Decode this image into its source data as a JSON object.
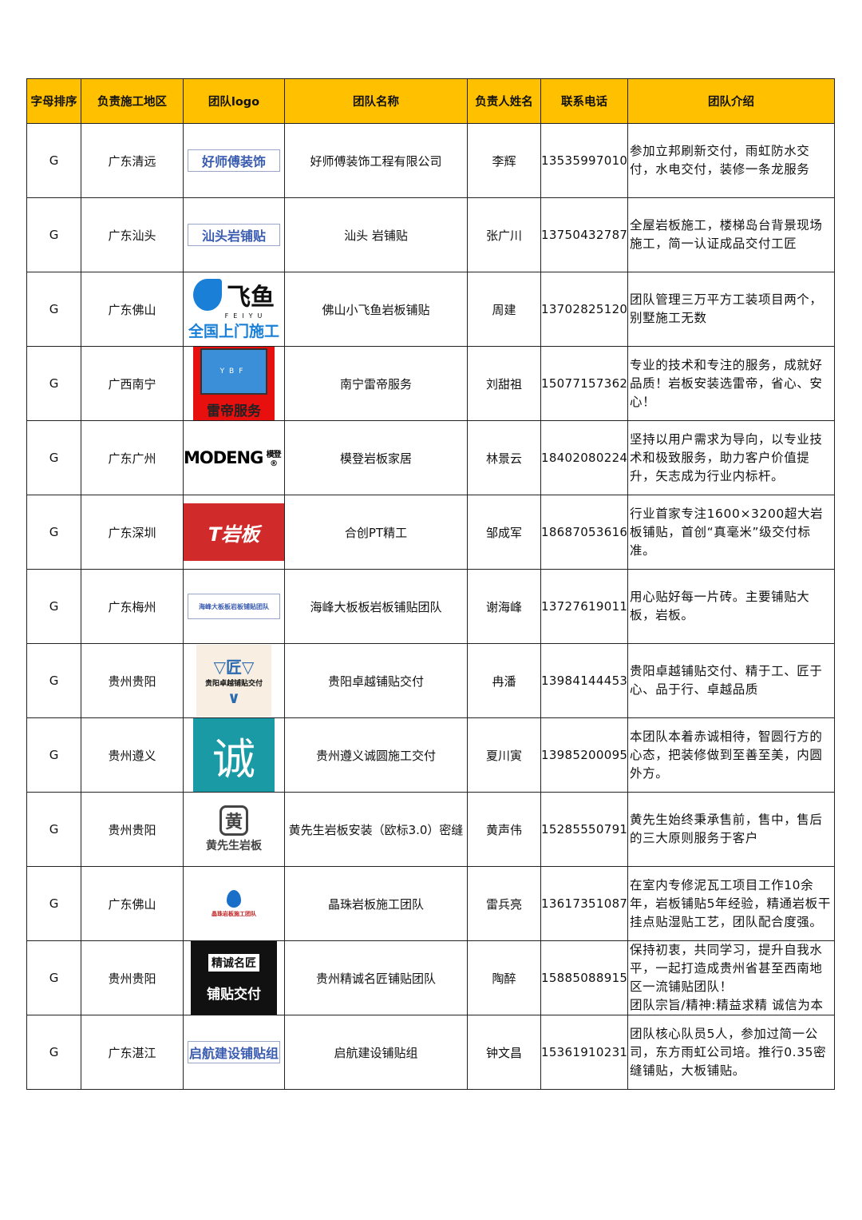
{
  "header": {
    "sort": "字母排序",
    "region": "负责施工地区",
    "logo": "团队logo",
    "team": "团队名称",
    "leader": "负责人姓名",
    "phone": "联系电话",
    "intro": "团队介绍"
  },
  "colors": {
    "header_bg": "#ffc000",
    "border": "#222222"
  },
  "rows": [
    {
      "letter": "G",
      "region": "广东清远",
      "logo_text": "好师傅装饰",
      "logo_type": "box",
      "team": "好师傅装饰工程有限公司",
      "leader": "李辉",
      "phone": "13535997010",
      "intro": "参加立邦刷新交付，雨虹防水交付，水电交付，装修一条龙服务"
    },
    {
      "letter": "G",
      "region": "广东汕头",
      "logo_text": "汕头岩铺贴",
      "logo_type": "box",
      "team": "汕头 岩铺贴",
      "leader": "张广川",
      "phone": "13750432787",
      "intro": "全屋岩板施工，楼梯岛台背景现场施工，简一认证成品交付工匠"
    },
    {
      "letter": "G",
      "region": "广东佛山",
      "logo_text": "飞鱼 FEIYU 全国上门施工",
      "logo_type": "feiyu",
      "team": "佛山小飞鱼岩板铺贴",
      "leader": "周建",
      "phone": "13702825120",
      "intro": "团队管理三万平方工装项目两个，别墅施工无数"
    },
    {
      "letter": "G",
      "region": "广西南宁",
      "logo_text": "YBF 雷帝服务",
      "logo_type": "leidi",
      "team": "南宁雷帝服务",
      "leader": "刘甜祖",
      "phone": "15077157362",
      "intro": "专业的技术和专注的服务，成就好品质！岩板安装选雷帝，省心、安心！"
    },
    {
      "letter": "G",
      "region": "广东广州",
      "logo_text": "MODENG模登®",
      "logo_type": "modeng",
      "team": "模登岩板家居",
      "leader": "林景云",
      "phone": "18402080224",
      "intro": "坚持以用户需求为导向，以专业技术和极致服务，助力客户价值提升，矢志成为行业内标杆。"
    },
    {
      "letter": "G",
      "region": "广东深圳",
      "logo_text": "T岩板",
      "logo_type": "pt",
      "team": "合创PT精工",
      "leader": "邹成军",
      "phone": "18687053616",
      "intro": "行业首家专注1600×3200超大岩板铺贴，首创“真毫米”级交付标准。"
    },
    {
      "letter": "G",
      "region": "广东梅州",
      "logo_text": "海峰大板板岩板铺贴团队",
      "logo_type": "box-small",
      "team": "海峰大板板岩板铺贴团队",
      "leader": "谢海峰",
      "phone": "13727619011",
      "intro": "用心贴好每一片砖。主要铺贴大板，岩板。"
    },
    {
      "letter": "G",
      "region": "贵州贵阳",
      "logo_text": "匠 贵阳卓越铺贴交付",
      "logo_type": "zhuoyue",
      "team": "贵阳卓越铺贴交付",
      "leader": "冉潘",
      "phone": "13984144453",
      "intro": "贵阳卓越铺贴交付、精于工、匠于心、品于行、卓越品质"
    },
    {
      "letter": "G",
      "region": "贵州遵义",
      "logo_text": "诚",
      "logo_type": "cheng",
      "team": "贵州遵义诚圆施工交付",
      "leader": "夏川寅",
      "phone": "13985200095",
      "intro": "本团队本着赤诚相待，智圆行方的心态，把装修做到至善至美，内圆外方。"
    },
    {
      "letter": "G",
      "region": "贵州贵阳",
      "logo_text": "黄先生岩板",
      "logo_type": "huang",
      "team": "黄先生岩板安装（欧标3.0）密缝",
      "leader": "黄声伟",
      "phone": "15285550791",
      "intro": "黄先生始终秉承售前，售中，售后的三大原则服务于客户"
    },
    {
      "letter": "G",
      "region": "广东佛山",
      "logo_text": "晶珠岩板施工团队",
      "logo_type": "jingzhu",
      "team": "晶珠岩板施工团队",
      "leader": "雷兵亮",
      "phone": "13617351087",
      "intro": "在室内专修泥瓦工项目工作10余年，岩板铺贴5年经验，精通岩板干挂点贴湿贴工艺，团队配合度强。"
    },
    {
      "letter": "G",
      "region": "贵州贵阳",
      "logo_text": "精诚名匠 铺贴交付",
      "logo_type": "jingcheng",
      "team": "贵州精诚名匠铺贴团队",
      "leader": "陶醉",
      "phone": "15885088915",
      "intro": "保持初衷，共同学习，提升自我水平，一起打造成贵州省甚至西南地区一流铺贴团队！\n团队宗旨/精神:精益求精  诚信为本"
    },
    {
      "letter": "G",
      "region": "广东湛江",
      "logo_text": "启航建设铺贴组",
      "logo_type": "box",
      "team": "启航建设铺贴组",
      "leader": "钟文昌",
      "phone": "15361910231",
      "intro": "团队核心队员5人，参加过简一公司，东方雨虹公司培。推行0.35密缝铺贴，大板铺贴。"
    }
  ]
}
